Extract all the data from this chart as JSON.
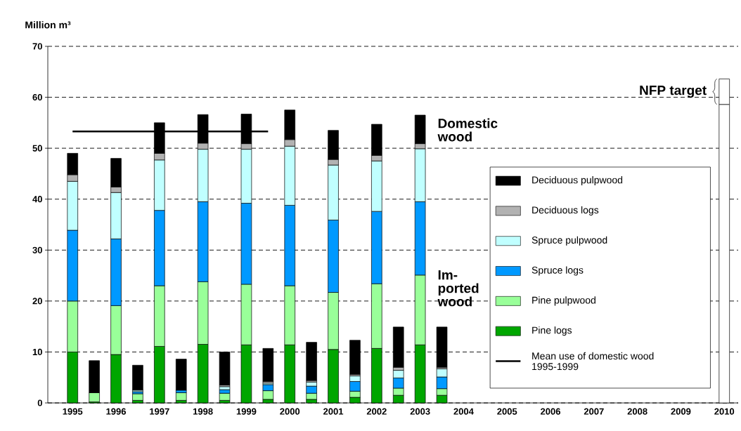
{
  "chart_data": {
    "type": "bar",
    "stacked": true,
    "ylabel": "Million m³",
    "categories": [
      "1995",
      null,
      "1996",
      null,
      "1997",
      null,
      "1998",
      null,
      "1999",
      null,
      "2000",
      null,
      "2001",
      null,
      "2002",
      null,
      "2003",
      null,
      "2004",
      null,
      "2005",
      null,
      "2006",
      null,
      "2007",
      null,
      "2008",
      null,
      "2009",
      null,
      "2010",
      null
    ],
    "series": [
      {
        "name": "Pine logs",
        "color": "#00a600",
        "values": [
          10.0,
          0.2,
          9.5,
          0.5,
          11.1,
          0.5,
          11.5,
          0.5,
          11.4,
          0.7,
          11.4,
          0.7,
          10.5,
          1.1,
          10.7,
          1.5,
          11.4,
          1.5,
          null,
          null,
          null,
          null,
          null,
          null,
          null,
          null,
          null,
          null,
          null,
          null,
          null,
          null
        ]
      },
      {
        "name": "Pine pulpwood",
        "color": "#99ff99",
        "values": [
          10.0,
          1.8,
          9.6,
          1.3,
          11.9,
          1.5,
          12.3,
          1.4,
          11.9,
          1.7,
          11.6,
          1.2,
          11.2,
          1.2,
          12.7,
          1.4,
          13.7,
          1.3,
          null,
          null,
          null,
          null,
          null,
          null,
          null,
          null,
          null,
          null,
          null,
          null,
          null,
          null
        ]
      },
      {
        "name": "Spruce logs",
        "color": "#0099ff",
        "values": [
          13.9,
          null,
          13.1,
          0.4,
          14.8,
          0.5,
          15.7,
          0.7,
          15.9,
          1.2,
          15.8,
          1.4,
          14.2,
          1.9,
          14.2,
          2.0,
          14.4,
          2.3,
          null,
          null,
          null,
          null,
          null,
          null,
          null,
          null,
          null,
          null,
          null,
          null,
          null,
          null
        ]
      },
      {
        "name": "Spruce  pulpwood",
        "color": "#c0ffff",
        "values": [
          9.6,
          null,
          9.1,
          0.3,
          9.9,
          null,
          10.3,
          0.6,
          10.6,
          0.3,
          11.6,
          0.8,
          10.8,
          1.1,
          9.9,
          1.5,
          10.4,
          1.6,
          null,
          null,
          null,
          null,
          null,
          null,
          null,
          null,
          null,
          null,
          null,
          null,
          null,
          null
        ]
      },
      {
        "name": "Deciduous logs",
        "color": "#b2b2b2",
        "values": [
          1.3,
          null,
          1.1,
          0.1,
          1.3,
          null,
          1.2,
          0.3,
          1.1,
          0.3,
          1.3,
          0.3,
          1.1,
          0.3,
          1.1,
          0.6,
          1.0,
          0.3,
          null,
          null,
          null,
          null,
          null,
          null,
          null,
          null,
          null,
          null,
          null,
          null,
          null,
          null
        ]
      },
      {
        "name": "Deciduous  pulpwood",
        "color": "#000000",
        "values": [
          4.2,
          6.3,
          5.6,
          4.8,
          6.0,
          6.1,
          5.6,
          6.5,
          5.8,
          6.5,
          5.8,
          7.5,
          5.7,
          6.7,
          6.1,
          7.9,
          5.6,
          7.9,
          null,
          null,
          null,
          null,
          null,
          null,
          null,
          null,
          null,
          null,
          null,
          null,
          null,
          null
        ]
      },
      {
        "color": "#ffffff",
        "values": [
          null,
          null,
          null,
          null,
          null,
          null,
          null,
          null,
          null,
          null,
          null,
          null,
          null,
          null,
          null,
          null,
          null,
          null,
          null,
          null,
          null,
          null,
          null,
          null,
          null,
          null,
          null,
          null,
          null,
          null,
          58.6,
          null
        ]
      },
      {
        "color": "#ffffff",
        "values": [
          null,
          null,
          null,
          null,
          null,
          null,
          null,
          null,
          null,
          null,
          null,
          null,
          null,
          null,
          null,
          null,
          null,
          null,
          null,
          null,
          null,
          null,
          null,
          null,
          null,
          null,
          null,
          null,
          null,
          null,
          5.0,
          null
        ]
      },
      {
        "name": "Mean use of domestic wood  1995-1999",
        "type": "line",
        "color": "#000000",
        "values": [
          53.3,
          53.3,
          53.3,
          53.3,
          53.3,
          53.3,
          53.3,
          53.3,
          53.3,
          53.3,
          null,
          null,
          null,
          null,
          null,
          null,
          null,
          null,
          null,
          null,
          null,
          null,
          null,
          null,
          null,
          null,
          null,
          null,
          null,
          null,
          null,
          null
        ]
      }
    ],
    "ylim": [
      0,
      70
    ],
    "yticks": [
      0,
      10,
      20,
      30,
      40,
      50,
      60,
      70
    ],
    "grid": "y",
    "legend": "right",
    "annotations": [
      "Domestic wood",
      "Im-ported wood",
      "NFP target"
    ]
  }
}
